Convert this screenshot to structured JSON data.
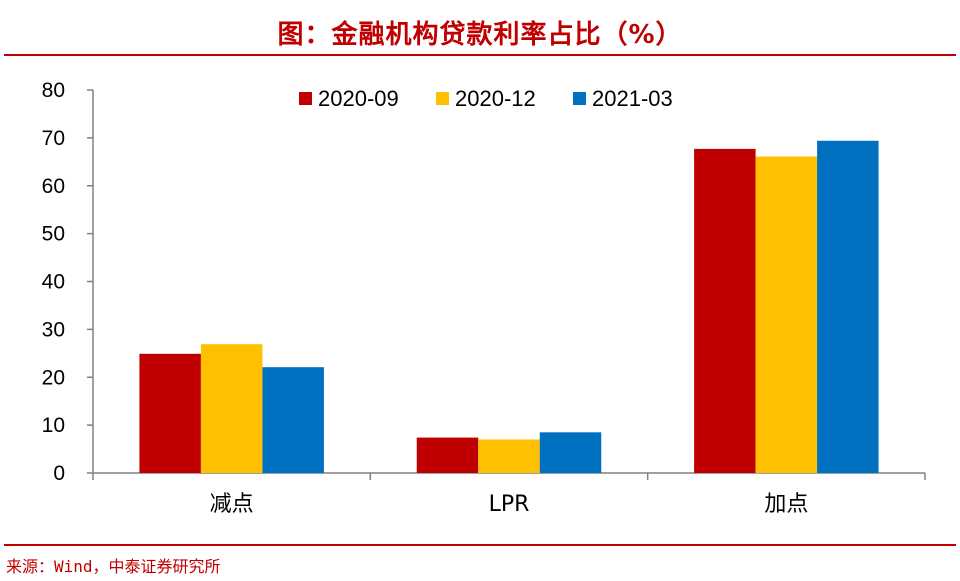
{
  "header": {
    "title": "图：金融机构贷款利率占比（%）"
  },
  "footer": {
    "source": "来源：Wind，中泰证券研究所"
  },
  "chart_data": {
    "type": "bar",
    "title": "图：金融机构贷款利率占比（%）",
    "categories": [
      "减点",
      "LPR",
      "加点"
    ],
    "series": [
      {
        "name": "2020-09",
        "color": "#c00000",
        "values": [
          24.9,
          7.4,
          67.7
        ]
      },
      {
        "name": "2020-12",
        "color": "#ffc000",
        "values": [
          26.9,
          7.0,
          66.1
        ]
      },
      {
        "name": "2021-03",
        "color": "#0070c0",
        "values": [
          22.1,
          8.5,
          69.4
        ]
      }
    ],
    "ylim": [
      0,
      80
    ],
    "yticks": [
      0,
      10,
      20,
      30,
      40,
      50,
      60,
      70,
      80
    ],
    "xlabel": "",
    "ylabel": "",
    "grid": false,
    "legend": "top-center"
  }
}
